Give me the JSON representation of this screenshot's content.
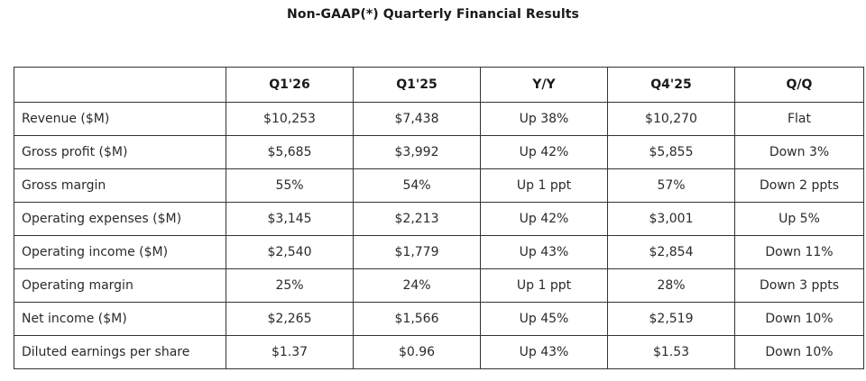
{
  "title": "Non-GAAP(*) Quarterly Financial Results",
  "table": {
    "headers": [
      "",
      "Q1'26",
      "Q1'25",
      "Y/Y",
      "Q4'25",
      "Q/Q"
    ],
    "rows": [
      [
        "Revenue ($M)",
        "$10,253",
        "$7,438",
        "Up 38%",
        "$10,270",
        "Flat"
      ],
      [
        "Gross profit ($M)",
        "$5,685",
        "$3,992",
        "Up 42%",
        "$5,855",
        "Down 3%"
      ],
      [
        "Gross margin",
        "55%",
        "54%",
        "Up 1 ppt",
        "57%",
        "Down 2 ppts"
      ],
      [
        "Operating expenses ($M)",
        "$3,145",
        "$2,213",
        "Up 42%",
        "$3,001",
        "Up 5%"
      ],
      [
        "Operating income ($M)",
        "$2,540",
        "$1,779",
        "Up 43%",
        "$2,854",
        "Down 11%"
      ],
      [
        "Operating margin",
        "25%",
        "24%",
        "Up 1 ppt",
        "28%",
        "Down 3 ppts"
      ],
      [
        "Net income ($M)",
        "$2,265",
        "$1,566",
        "Up 45%",
        "$2,519",
        "Down 10%"
      ],
      [
        "Diluted earnings per share",
        "$1.37",
        "$0.96",
        "Up 43%",
        "$1.53",
        "Down 10%"
      ]
    ]
  }
}
